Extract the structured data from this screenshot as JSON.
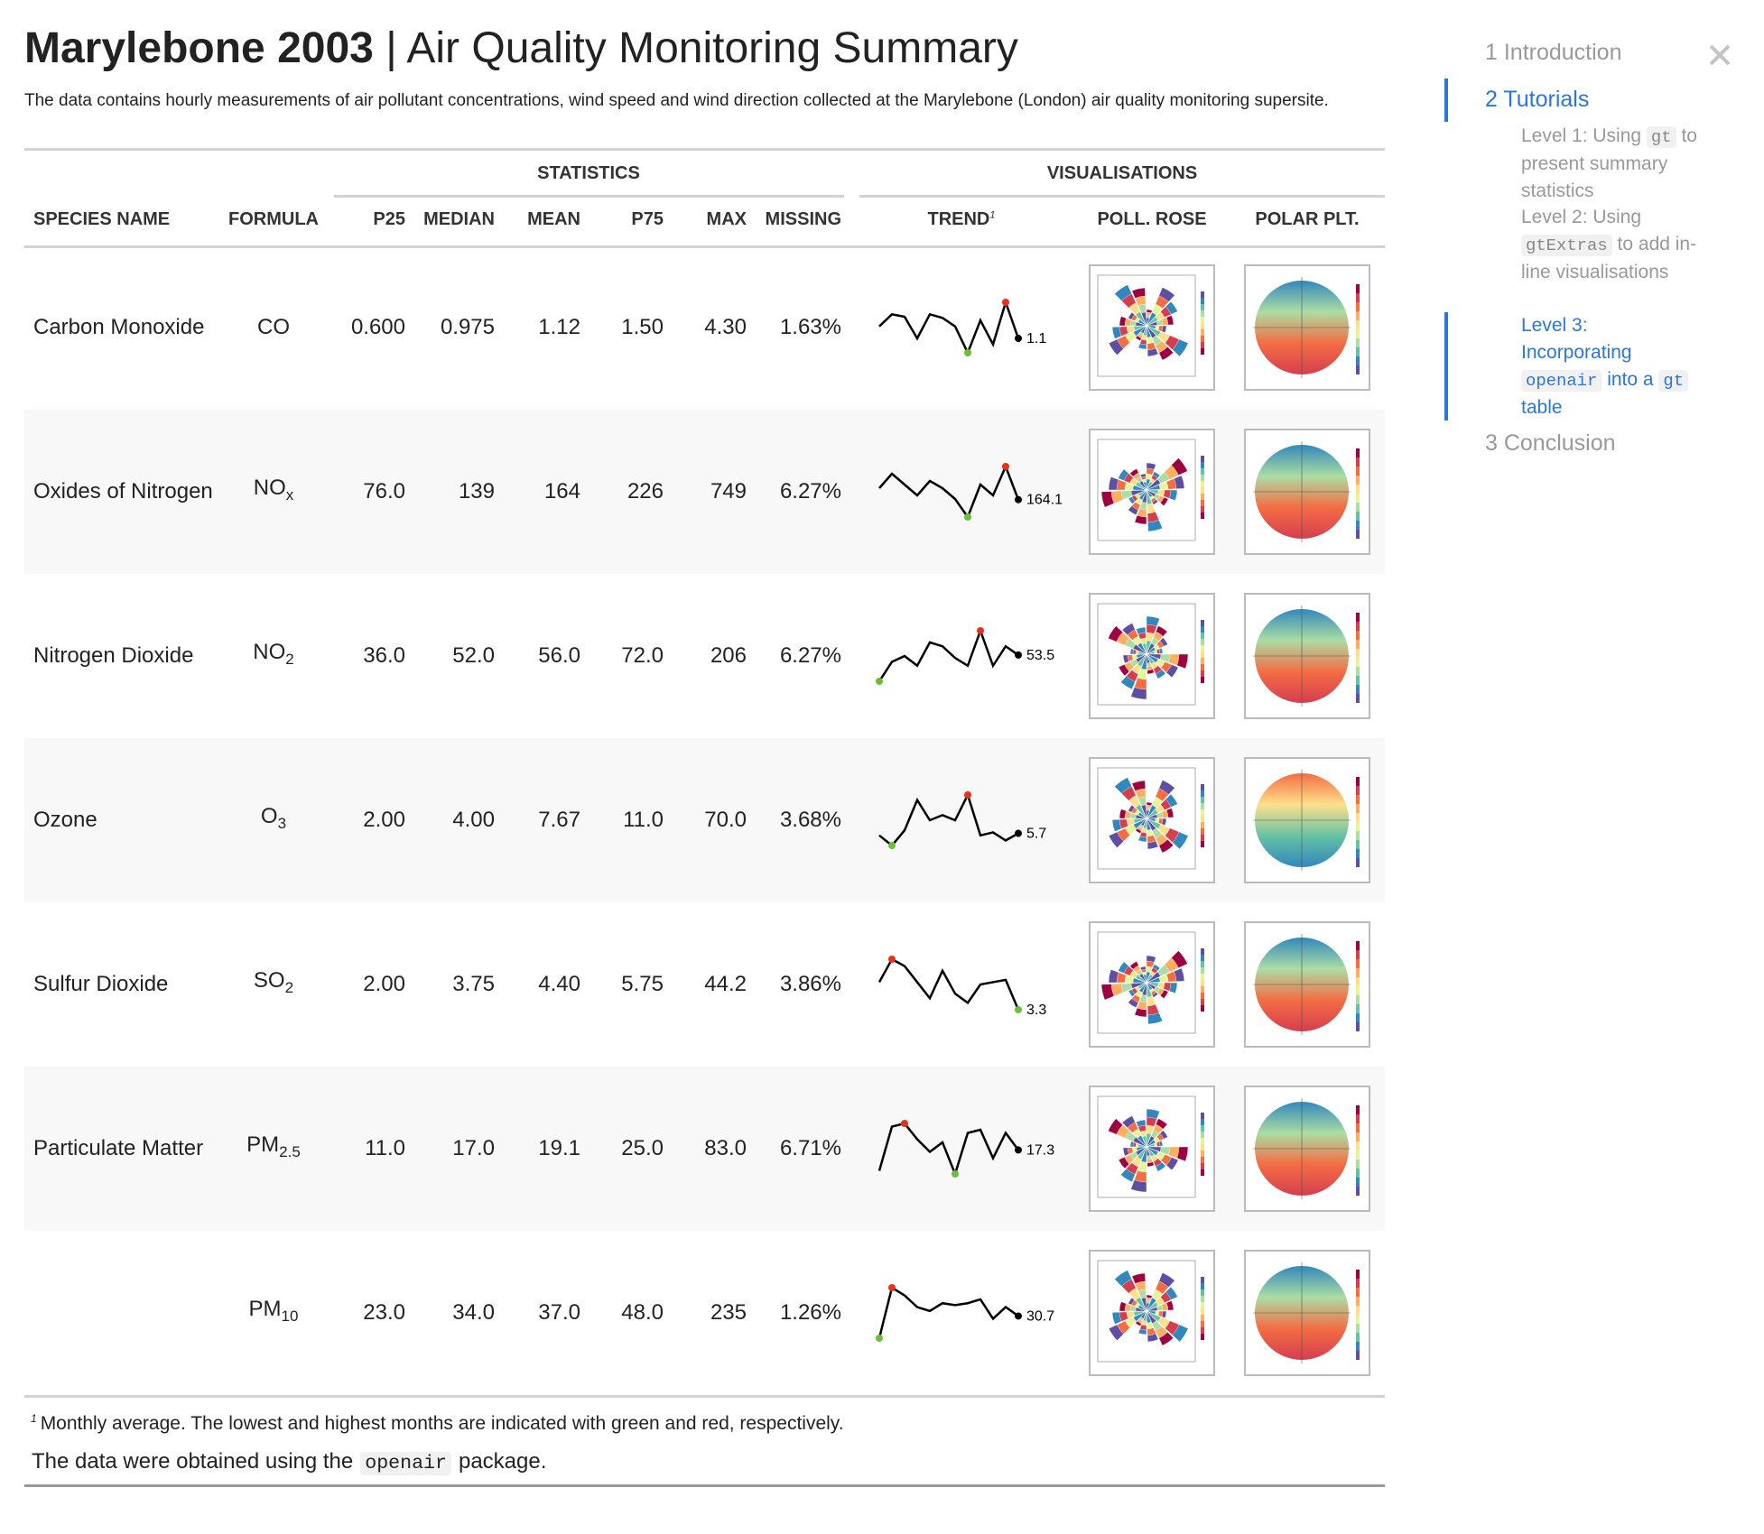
{
  "header": {
    "title_main": "Marylebone 2003",
    "title_rest": "| Air Quality Monitoring Summary",
    "description": "The data contains hourly measurements of air pollutant concentrations, wind speed and wind direction collected at the Marylebone (London) air quality monitoring supersite."
  },
  "table": {
    "spanners": [
      "STATISTICS",
      "VISUALISATIONS"
    ],
    "columns": [
      "SPECIES NAME",
      "FORMULA",
      "P25",
      "MEDIAN",
      "MEAN",
      "P75",
      "MAX",
      "MISSING",
      "TREND",
      "POLL. ROSE",
      "POLAR PLT."
    ],
    "rows": [
      {
        "name": "Carbon Monoxide",
        "formula": {
          "base": "CO"
        },
        "stats": [
          "0.600",
          "0.975",
          "1.12",
          "1.50",
          "4.30",
          "1.63%"
        ],
        "trend": {
          "values": [
            1.2,
            1.3,
            1.28,
            1.1,
            1.3,
            1.27,
            1.2,
            0.98,
            1.25,
            1.05,
            1.4,
            1.1
          ],
          "end_label": "1.1"
        }
      },
      {
        "name": "Oxides of Nitrogen",
        "formula": {
          "base": "NO",
          "sub": "x"
        },
        "stats": [
          "76.0",
          "139",
          "164",
          "226",
          "749",
          "6.27%"
        ],
        "trend": {
          "values": [
            180,
            200,
            185,
            170,
            190,
            180,
            165,
            140,
            185,
            170,
            210,
            164.1
          ],
          "end_label": "164.1"
        }
      },
      {
        "name": "Nitrogen Dioxide",
        "formula": {
          "base": "NO",
          "sub": "2"
        },
        "stats": [
          "36.0",
          "52.0",
          "56.0",
          "72.0",
          "206",
          "6.27%"
        ],
        "trend": {
          "values": [
            40,
            50,
            53,
            48,
            60,
            58,
            52,
            48,
            66,
            48,
            58,
            53.5
          ],
          "end_label": "53.5"
        }
      },
      {
        "name": "Ozone",
        "formula": {
          "base": "O",
          "sub": "3"
        },
        "stats": [
          "2.00",
          "4.00",
          "7.67",
          "11.0",
          "70.0",
          "3.68%"
        ],
        "trend": {
          "values": [
            5.5,
            4.5,
            6,
            9,
            7,
            7.5,
            7,
            9.5,
            5.5,
            5.8,
            5,
            5.7
          ],
          "end_label": "5.7"
        }
      },
      {
        "name": "Sulfur Dioxide",
        "formula": {
          "base": "SO",
          "sub": "2"
        },
        "stats": [
          "2.00",
          "3.75",
          "4.40",
          "5.75",
          "44.2",
          "3.86%"
        ],
        "trend": {
          "values": [
            4.5,
            5.5,
            5.2,
            4.5,
            3.8,
            5,
            4,
            3.6,
            4.4,
            4.5,
            4.6,
            3.3
          ],
          "end_label": "3.3"
        }
      },
      {
        "name": "Particulate Matter",
        "formula": {
          "base": "PM",
          "sub": "2.5"
        },
        "stats": [
          "11.0",
          "17.0",
          "19.1",
          "25.0",
          "83.0",
          "6.71%"
        ],
        "trend": {
          "values": [
            14,
            21,
            21.5,
            19,
            17,
            18.5,
            13.5,
            20,
            20.5,
            16,
            20,
            17.3
          ],
          "end_label": "17.3"
        }
      },
      {
        "name": null,
        "formula": {
          "base": "PM",
          "sub": "10"
        },
        "stats": [
          "23.0",
          "34.0",
          "37.0",
          "48.0",
          "235",
          "1.26%"
        ],
        "trend": {
          "values": [
            25,
            38,
            36,
            33,
            32,
            34,
            33.5,
            34,
            35,
            30,
            33,
            30.7
          ],
          "end_label": "30.7"
        }
      }
    ],
    "footnote": {
      "mark": "1",
      "text": "Monthly average. The lowest and highest months are indicated with green and red, respectively."
    },
    "source": [
      {
        "text": "The data were obtained using the"
      },
      {
        "code": "openair"
      },
      {
        "text": "package."
      }
    ]
  },
  "toc": {
    "items": [
      "1 Introduction",
      "2 Tutorials",
      "3 Conclusion"
    ],
    "subitems": [
      [
        {
          "text": "Level 1: Using "
        },
        {
          "code": "gt"
        },
        {
          "text": " to present summary statistics"
        }
      ],
      [
        {
          "text": "Level 2: Using "
        },
        {
          "code": "gtExtras"
        },
        {
          "text": " to add in-line visualisations"
        }
      ],
      [
        {
          "text": "Level 3: Incorporating "
        },
        {
          "code": "openair"
        },
        {
          "text": " into a "
        },
        {
          "code": "gt"
        },
        {
          "text": " table"
        }
      ]
    ]
  }
}
